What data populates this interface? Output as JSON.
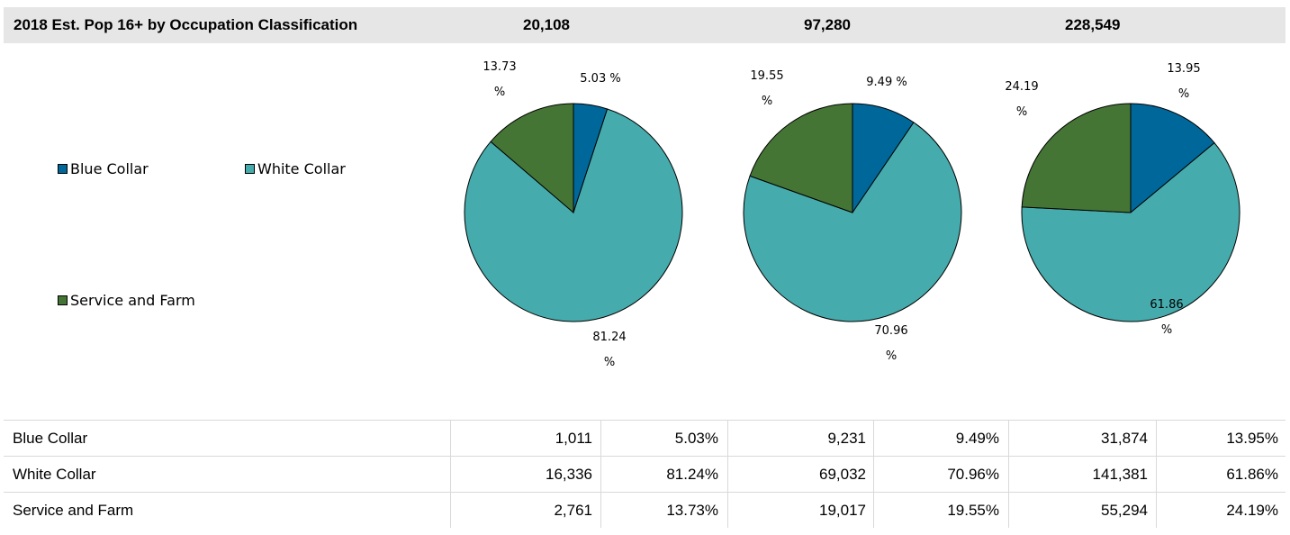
{
  "header": {
    "title": "2018 Est. Pop 16+ by Occupation Classification",
    "totals": [
      "20,108",
      "97,280",
      "228,549"
    ]
  },
  "legend": [
    {
      "label": "Blue Collar",
      "color": "#00679a"
    },
    {
      "label": "White Collar",
      "color": "#46abac"
    },
    {
      "label": "Service and Farm",
      "color": "#457535"
    }
  ],
  "chart_data": [
    {
      "type": "pie",
      "categories": [
        "Blue Collar",
        "White Collar",
        "Service and Farm"
      ],
      "values": [
        5.03,
        81.24,
        13.73
      ],
      "labels": [
        [
          "5.03 %"
        ],
        [
          "81.24",
          "%"
        ],
        [
          "13.73",
          "%"
        ]
      ]
    },
    {
      "type": "pie",
      "categories": [
        "Blue Collar",
        "White Collar",
        "Service and Farm"
      ],
      "values": [
        9.49,
        70.96,
        19.55
      ],
      "labels": [
        [
          "9.49 %"
        ],
        [
          "70.96",
          "%"
        ],
        [
          "19.55",
          "%"
        ]
      ]
    },
    {
      "type": "pie",
      "categories": [
        "Blue Collar",
        "White Collar",
        "Service and Farm"
      ],
      "values": [
        13.95,
        61.86,
        24.19
      ],
      "labels": [
        [
          "13.95",
          "%"
        ],
        [
          "61.86",
          "%"
        ],
        [
          "24.19",
          "%"
        ]
      ]
    }
  ],
  "table": {
    "rows": [
      {
        "label": "Blue Collar",
        "cells": [
          "1,011",
          "5.03%",
          "9,231",
          "9.49%",
          "31,874",
          "13.95%"
        ]
      },
      {
        "label": "White Collar",
        "cells": [
          "16,336",
          "81.24%",
          "69,032",
          "70.96%",
          "141,381",
          "61.86%"
        ]
      },
      {
        "label": "Service and Farm",
        "cells": [
          "2,761",
          "13.73%",
          "19,017",
          "19.55%",
          "55,294",
          "24.19%"
        ]
      }
    ]
  }
}
